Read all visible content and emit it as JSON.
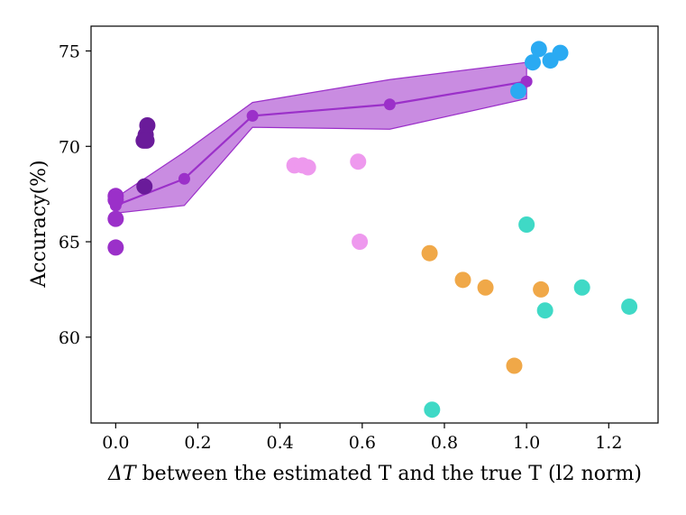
{
  "chart_data": {
    "type": "scatter",
    "title": "",
    "xlabel": {
      "symbol": "ΔT",
      "rest": " between the estimated T and the true T (l2 norm)"
    },
    "ylabel": "Accuracy(%)",
    "xlim": [
      -0.06,
      1.32
    ],
    "ylim": [
      55.5,
      76.3
    ],
    "xticks": [
      0.0,
      0.2,
      0.4,
      0.6,
      0.8,
      1.0,
      1.2
    ],
    "xtick_labels": [
      "0.0",
      "0.2",
      "0.4",
      "0.6",
      "0.8",
      "1.0",
      "1.2"
    ],
    "yticks": [
      60,
      65,
      70,
      75
    ],
    "ytick_labels": [
      "60",
      "65",
      "70",
      "75"
    ],
    "band": {
      "name": "mean with range",
      "color": "#9b30c9",
      "fill_color": "#b45fd6",
      "x": [
        0.0,
        0.167,
        0.333,
        0.667,
        1.0
      ],
      "mean": [
        66.9,
        68.3,
        71.6,
        72.2,
        73.4
      ],
      "lower": [
        66.5,
        66.9,
        71.0,
        70.9,
        72.5
      ],
      "upper": [
        67.3,
        69.7,
        72.3,
        73.5,
        74.4
      ]
    },
    "series": [
      {
        "name": "purple",
        "color": "#9b30c9",
        "points": [
          [
            0.0,
            67.4
          ],
          [
            0.0,
            67.2
          ],
          [
            0.0,
            66.2
          ],
          [
            0.0,
            64.7
          ]
        ]
      },
      {
        "name": "dark-purple",
        "color": "#6a1b9a",
        "points": [
          [
            0.077,
            71.1
          ],
          [
            0.073,
            70.6
          ],
          [
            0.068,
            70.3
          ],
          [
            0.075,
            70.3
          ],
          [
            0.07,
            67.9
          ]
        ]
      },
      {
        "name": "pink",
        "color": "#ee99ee",
        "points": [
          [
            0.435,
            69.0
          ],
          [
            0.455,
            69.0
          ],
          [
            0.468,
            68.9
          ],
          [
            0.59,
            69.2
          ],
          [
            0.594,
            65.0
          ]
        ]
      },
      {
        "name": "orange",
        "color": "#f0a848",
        "points": [
          [
            0.764,
            64.4
          ],
          [
            0.845,
            63.0
          ],
          [
            0.9,
            62.6
          ],
          [
            1.035,
            62.5
          ],
          [
            0.97,
            58.5
          ]
        ]
      },
      {
        "name": "teal",
        "color": "#3fd9c6",
        "points": [
          [
            1.0,
            65.9
          ],
          [
            1.135,
            62.6
          ],
          [
            1.045,
            61.4
          ],
          [
            1.25,
            61.6
          ],
          [
            0.77,
            56.2
          ]
        ]
      },
      {
        "name": "blue",
        "color": "#2aaaf2",
        "points": [
          [
            1.03,
            75.1
          ],
          [
            1.082,
            74.9
          ],
          [
            1.058,
            74.5
          ],
          [
            1.015,
            74.4
          ],
          [
            0.98,
            72.9
          ]
        ]
      }
    ]
  }
}
